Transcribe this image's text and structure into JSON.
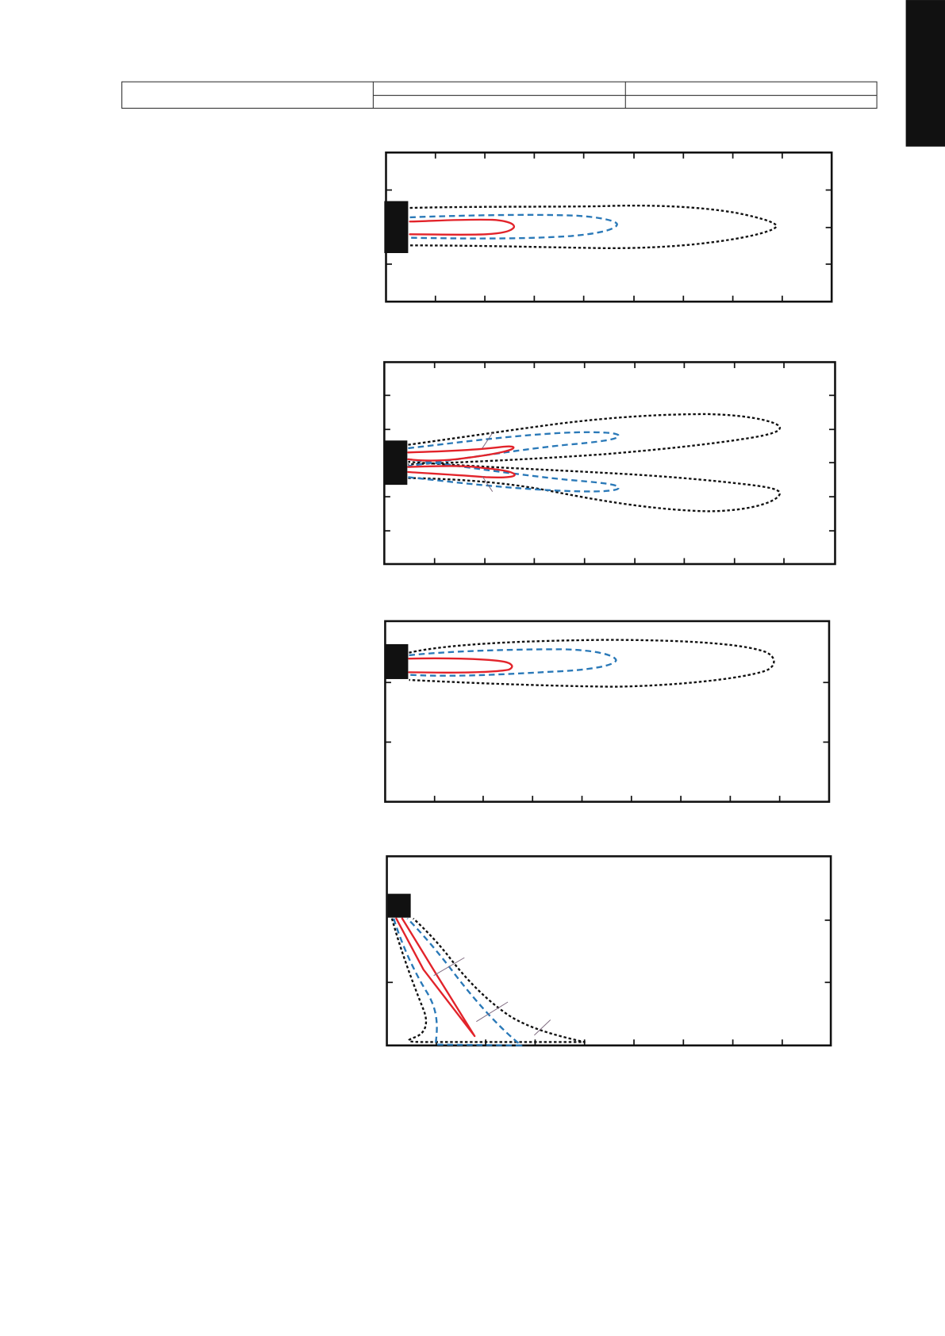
{
  "colors": {
    "page_background": "#ffffff",
    "tab": "#111111",
    "table_border": "#333333",
    "frame": "#111111",
    "unit_block": "#111111",
    "red_contour": "#e2232a",
    "blue_contour": "#2a79b8",
    "black_contour": "#111111",
    "leader_line": "#7f6b80"
  }
}
